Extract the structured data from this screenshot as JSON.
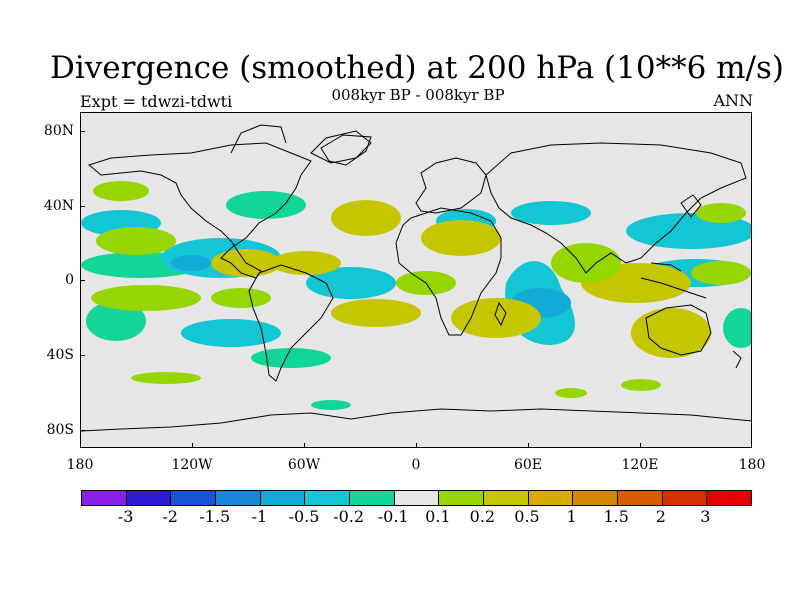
{
  "title": "Divergence (smoothed) at 200 hPa (10**6 m/s)",
  "subtitle": "008kyr BP - 008kyr BP",
  "left_string": "Expt = tdwzi-tdwti",
  "right_string": "ANN",
  "lat_labels": [
    "80N",
    "40N",
    "0",
    "40S",
    "80S"
  ],
  "lon_labels": [
    "180",
    "120W",
    "60W",
    "0",
    "60E",
    "120E",
    "180"
  ],
  "colorbar": {
    "colors": [
      "#8a1fe8",
      "#2f18d6",
      "#1a52d6",
      "#1b86d6",
      "#14aad6",
      "#12c6d3",
      "#12d698",
      "#e6e6e6",
      "#96d600",
      "#c6c600",
      "#d6aa00",
      "#d68700",
      "#d65e00",
      "#d63200",
      "#e60000"
    ],
    "labels": [
      "-3",
      "-2",
      "-1.5",
      "-1",
      "-0.5",
      "-0.2",
      "-0.1",
      "0.1",
      "0.2",
      "0.5",
      "1",
      "1.5",
      "2",
      "3"
    ]
  }
}
